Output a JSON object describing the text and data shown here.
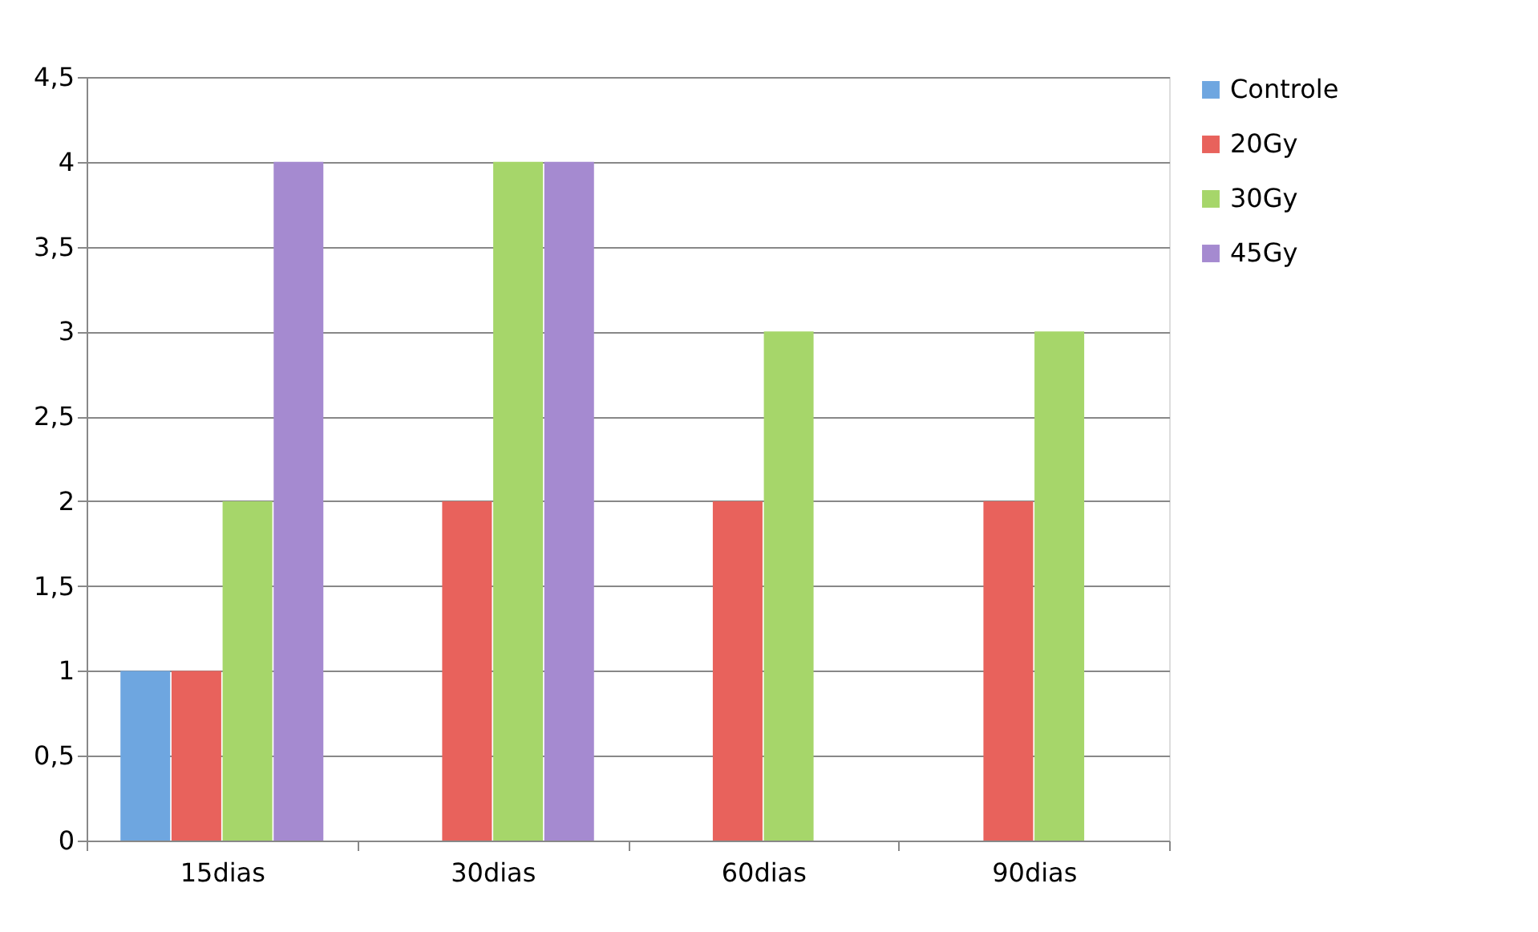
{
  "chart_data": {
    "type": "bar",
    "categories": [
      "15dias",
      "30dias",
      "60dias",
      "90dias"
    ],
    "series": [
      {
        "name": "Controle",
        "color": "#6ea6e0",
        "values": [
          1,
          0,
          0,
          0
        ]
      },
      {
        "name": "20Gy",
        "color": "#e8625c",
        "values": [
          1,
          2,
          2,
          2
        ]
      },
      {
        "name": "30Gy",
        "color": "#a6d66a",
        "values": [
          2,
          4,
          3,
          3
        ]
      },
      {
        "name": "45Gy",
        "color": "#a58ad0",
        "values": [
          4,
          4,
          0,
          0
        ]
      }
    ],
    "ylim": [
      0,
      4.5
    ],
    "yticks": [
      0,
      {
        "value": 0.5,
        "label": "0,5"
      },
      1,
      {
        "value": 1.5,
        "label": "1,5"
      },
      2,
      {
        "value": 2.5,
        "label": "2,5"
      },
      3,
      {
        "value": 3.5,
        "label": "3,5"
      },
      4,
      {
        "value": 4.5,
        "label": "4,5"
      }
    ],
    "grid": "y",
    "legend": "right"
  }
}
